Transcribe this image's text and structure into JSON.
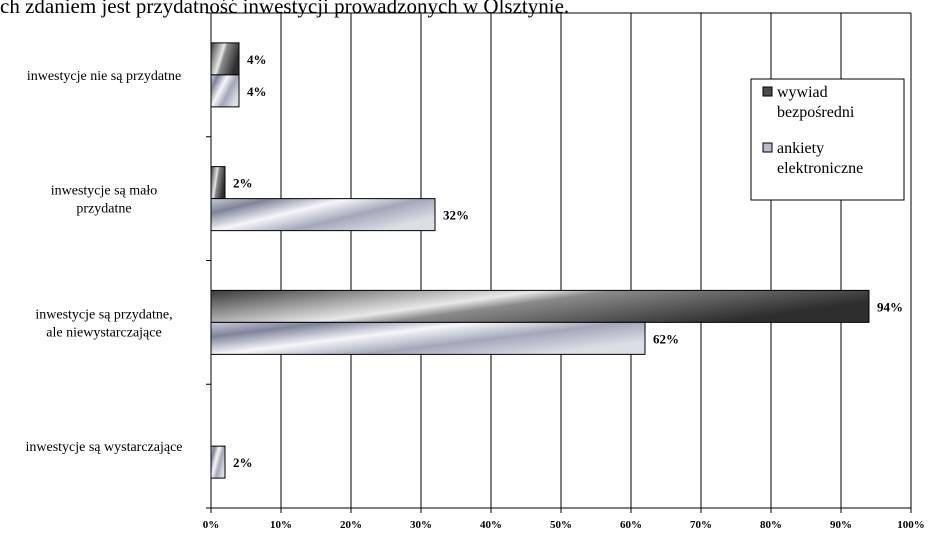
{
  "caption": "ch zdaniem jest przydatność inwestycji prowadzonych w Olsztynie.",
  "chart_data": {
    "type": "bar",
    "orientation": "horizontal",
    "categories": [
      [
        "inwestycje nie są przydatne"
      ],
      [
        "inwestycje są mało",
        "przydatne"
      ],
      [
        "inwestycje są przydatne,",
        "ale niewystarczające"
      ],
      [
        "inwestycje są wystarczające"
      ]
    ],
    "series": [
      {
        "name": [
          "wywiad",
          "bezpośredni"
        ],
        "values": [
          4,
          2,
          94,
          null
        ],
        "labels": [
          "4%",
          "2%",
          "94%",
          ""
        ],
        "color": "#4a4a4a"
      },
      {
        "name": [
          "ankiety",
          "elektroniczne"
        ],
        "values": [
          4,
          32,
          62,
          2
        ],
        "labels": [
          "4%",
          "32%",
          "62%",
          "2%"
        ],
        "color": "#b8bccb"
      }
    ],
    "xlim": [
      0,
      100
    ],
    "xticks": [
      "0%",
      "10%",
      "20%",
      "30%",
      "40%",
      "50%",
      "60%",
      "70%",
      "80%",
      "90%",
      "100%"
    ],
    "grid": "vertical",
    "legend": "top-right"
  }
}
